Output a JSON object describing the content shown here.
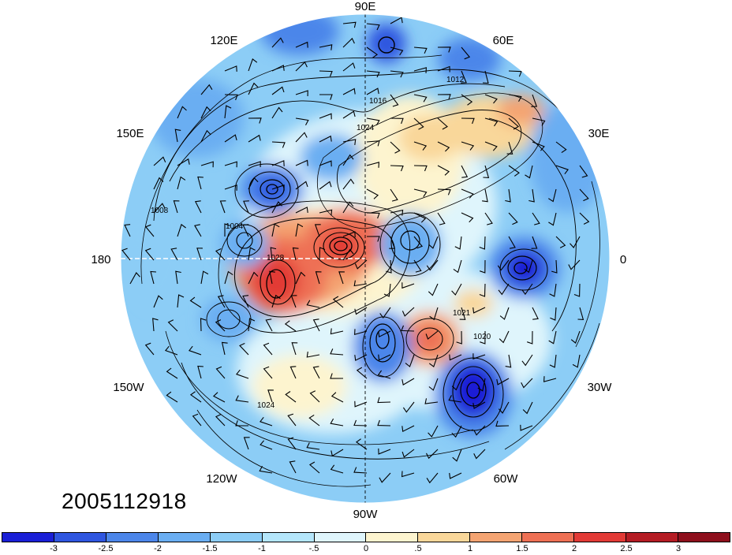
{
  "map": {
    "projection": "north-polar-stereographic",
    "fill_field": "anomaly",
    "contour_field": "sea-level-pressure",
    "overlay": "wind-barbs",
    "longitude_labels": [
      "90E",
      "60E",
      "30E",
      "0",
      "30W",
      "60W",
      "90W",
      "120W",
      "150W",
      "180",
      "150E",
      "120E"
    ],
    "contour_labels": [
      "1024",
      "1016",
      "1012",
      "1008",
      "1004",
      "1020",
      "1028",
      "1024",
      "1021"
    ]
  },
  "timestamp": "2005112918",
  "colorbar": {
    "tick_labels": [
      "-3",
      "-2.5",
      "-2",
      "-1.5",
      "-1",
      "-.5",
      "0",
      ".5",
      "1",
      "1.5",
      "2",
      "2.5",
      "3"
    ],
    "colors": [
      "#1a1fd6",
      "#2f56e0",
      "#4c86ea",
      "#6aaef2",
      "#8ccdf6",
      "#b4e6fb",
      "#dff5fc",
      "#fdf4cf",
      "#f9d79a",
      "#f4a472",
      "#ee7054",
      "#e23a36",
      "#b51c24",
      "#8e0f1c"
    ]
  }
}
